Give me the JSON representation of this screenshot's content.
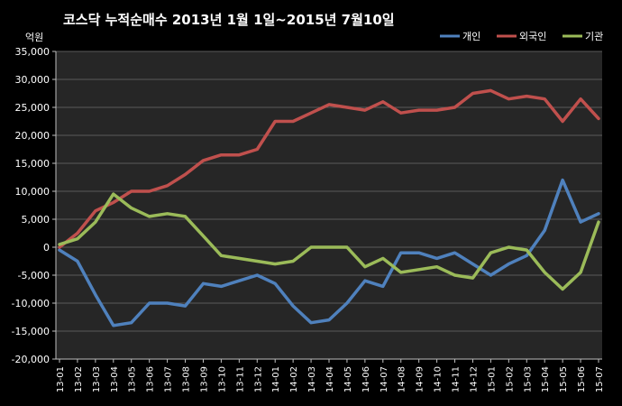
{
  "chart_data": {
    "type": "line",
    "title": "코스닥 누적순매수 2013년 1월 1일~2015년 7월10일",
    "y_unit_label": "억원",
    "xlabel": "",
    "ylabel": "",
    "ylim": [
      -20000,
      35000
    ],
    "y_ticks": [
      "35,000",
      "30,000",
      "25,000",
      "20,000",
      "15,000",
      "10,000",
      "5,000",
      "0",
      "-5,000",
      "-10,000",
      "-15,000",
      "-20,000"
    ],
    "x_ticks": [
      "13-01",
      "13-02",
      "13-03",
      "13-04",
      "13-05",
      "13-06",
      "13-07",
      "13-08",
      "13-09",
      "13-10",
      "13-11",
      "13-12",
      "14-01",
      "14-02",
      "14-03",
      "14-04",
      "14-05",
      "14-06",
      "14-07",
      "14-08",
      "14-09",
      "14-10",
      "14-11",
      "14-12",
      "15-01",
      "15-02",
      "15-03",
      "15-04",
      "15-05",
      "15-06",
      "15-07"
    ],
    "grid": "horizontal",
    "legend_position": "top-right",
    "background": "#262626",
    "series": [
      {
        "name": "개인",
        "color": "#4f81bd",
        "values": [
          -500,
          -2500,
          -8500,
          -14000,
          -13500,
          -10000,
          -10000,
          -10500,
          -6500,
          -7000,
          -6000,
          -5000,
          -6500,
          -10500,
          -13500,
          -13000,
          -10000,
          -6000,
          -7000,
          -1000,
          -1000,
          -2000,
          -1000,
          -3000,
          -5000,
          -3000,
          -1500,
          3000,
          12000,
          4500,
          6000
        ]
      },
      {
        "name": "외국인",
        "color": "#c0504d",
        "values": [
          0,
          2500,
          6500,
          8000,
          10000,
          10000,
          11000,
          13000,
          15500,
          16500,
          16500,
          17500,
          22500,
          22500,
          24000,
          25500,
          25000,
          24500,
          26000,
          24000,
          24500,
          24500,
          25000,
          27500,
          28000,
          26500,
          27000,
          26500,
          22500,
          26500,
          23000
        ]
      },
      {
        "name": "기관",
        "color": "#9bbb59",
        "values": [
          500,
          1500,
          4500,
          9500,
          7000,
          5500,
          6000,
          5500,
          2000,
          -1500,
          -2000,
          -2500,
          -3000,
          -2500,
          0,
          0,
          0,
          -3500,
          -2000,
          -4500,
          -4000,
          -3500,
          -5000,
          -5500,
          -1000,
          0,
          -500,
          -4500,
          -7500,
          -4500,
          4500
        ]
      }
    ]
  }
}
